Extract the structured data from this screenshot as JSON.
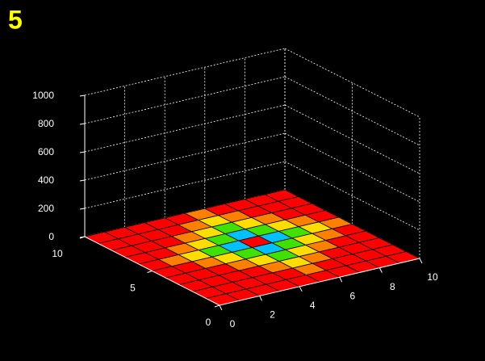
{
  "chart_data": {
    "type": "surface",
    "title": "5",
    "x": [
      0,
      1,
      2,
      3,
      4,
      5,
      6,
      7,
      8,
      9,
      10
    ],
    "y": [
      0,
      1,
      2,
      3,
      4,
      5,
      6,
      7,
      8,
      9,
      10
    ],
    "z": [
      [
        0,
        0,
        0,
        0,
        0,
        0,
        0,
        0,
        0,
        0,
        0
      ],
      [
        0,
        0,
        0,
        0,
        0,
        0,
        0,
        0,
        0,
        0,
        0
      ],
      [
        0,
        0,
        0,
        0,
        0,
        0,
        0,
        0,
        0,
        0,
        0
      ],
      [
        0,
        0,
        0,
        0,
        0,
        0,
        0,
        0,
        0,
        0,
        0
      ],
      [
        0,
        0,
        0,
        0,
        0,
        0,
        0,
        0,
        0,
        0,
        0
      ],
      [
        0,
        0,
        0,
        0,
        0,
        0,
        0,
        0,
        0,
        0,
        0
      ],
      [
        0,
        0,
        0,
        0,
        0,
        0,
        0,
        0,
        0,
        0,
        0
      ],
      [
        0,
        0,
        0,
        0,
        0,
        0,
        0,
        0,
        0,
        0,
        0
      ],
      [
        0,
        0,
        0,
        0,
        0,
        0,
        0,
        0,
        0,
        0,
        0
      ],
      [
        0,
        0,
        0,
        0,
        0,
        0,
        0,
        0,
        0,
        0,
        0
      ],
      [
        0,
        0,
        0,
        0,
        0,
        0,
        0,
        0,
        0,
        0,
        0
      ]
    ],
    "cell_colors": [
      [
        "#ff0000",
        "#ff0000",
        "#ff0000",
        "#ff0000",
        "#ff0000",
        "#ff0000",
        "#ff0000",
        "#ff0000",
        "#ff0000",
        "#ff0000"
      ],
      [
        "#ff0000",
        "#ff0000",
        "#ff0000",
        "#ff0000",
        "#ff0000",
        "#ff8000",
        "#ff0000",
        "#ff0000",
        "#ff0000",
        "#ff0000"
      ],
      [
        "#ff0000",
        "#ff0000",
        "#ff0000",
        "#ff0000",
        "#ff8000",
        "#ffdd00",
        "#ff8000",
        "#ff0000",
        "#ff0000",
        "#ff0000"
      ],
      [
        "#ff0000",
        "#ff0000",
        "#ff0000",
        "#ff8000",
        "#ffdd00",
        "#40e000",
        "#ffdd00",
        "#ff8000",
        "#ff0000",
        "#ff0000"
      ],
      [
        "#ff0000",
        "#ff0000",
        "#ff8000",
        "#ffdd00",
        "#40e000",
        "#00c0ff",
        "#40e000",
        "#ffdd00",
        "#ff8000",
        "#ff0000"
      ],
      [
        "#ff0000",
        "#ff8000",
        "#ffdd00",
        "#40e000",
        "#00c0ff",
        "#ff0000",
        "#00c0ff",
        "#40e000",
        "#ffdd00",
        "#ff8000"
      ],
      [
        "#ff0000",
        "#ff0000",
        "#ff8000",
        "#ffdd00",
        "#40e000",
        "#00c0ff",
        "#40e000",
        "#ffdd00",
        "#ff8000",
        "#ff0000"
      ],
      [
        "#ff0000",
        "#ff0000",
        "#ff0000",
        "#ff8000",
        "#ffdd00",
        "#40e000",
        "#ffdd00",
        "#ff8000",
        "#ff0000",
        "#ff0000"
      ],
      [
        "#ff0000",
        "#ff0000",
        "#ff0000",
        "#ff0000",
        "#ff8000",
        "#ffdd00",
        "#ff8000",
        "#ff0000",
        "#ff0000",
        "#ff0000"
      ],
      [
        "#ff0000",
        "#ff0000",
        "#ff0000",
        "#ff0000",
        "#ff0000",
        "#ff8000",
        "#ff0000",
        "#ff0000",
        "#ff0000",
        "#ff0000"
      ]
    ],
    "xlim": [
      0,
      10
    ],
    "ylim": [
      0,
      10
    ],
    "zlim": [
      0,
      1000
    ],
    "xticks": [
      0,
      2,
      4,
      6,
      8,
      10
    ],
    "yticks": [
      0,
      5,
      10
    ],
    "zticks": [
      0,
      200,
      400,
      600,
      800,
      1000
    ],
    "grid": true,
    "edge_color": "#000000",
    "axis_color": "#ffffff",
    "title_color": "#ffff00"
  }
}
